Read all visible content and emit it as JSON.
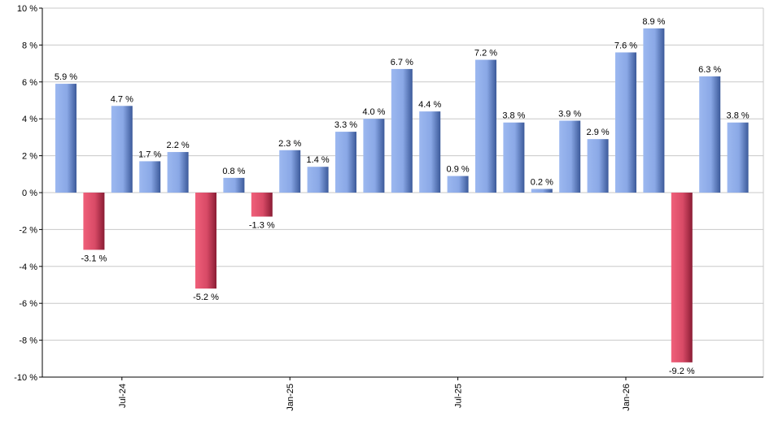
{
  "chart_data": {
    "type": "bar",
    "title": "",
    "xlabel": "",
    "ylabel": "",
    "ylim": [
      -10,
      10
    ],
    "y_ticks": [
      -10,
      -8,
      -6,
      -4,
      -2,
      0,
      2,
      4,
      6,
      8,
      10
    ],
    "y_tick_suffix": " %",
    "grid": true,
    "legend": "none",
    "x_tick_labels": [
      {
        "label": "Jul-24",
        "index": 2
      },
      {
        "label": "Jan-25",
        "index": 8
      },
      {
        "label": "Jul-25",
        "index": 14
      },
      {
        "label": "Jan-26",
        "index": 20
      }
    ],
    "values": [
      5.9,
      -3.1,
      4.7,
      1.7,
      2.2,
      -5.2,
      0.8,
      -1.3,
      2.3,
      1.4,
      3.3,
      4.0,
      6.7,
      4.4,
      0.9,
      7.2,
      3.8,
      0.2,
      3.9,
      2.9,
      7.6,
      8.9,
      -9.2,
      6.3,
      3.8
    ],
    "data_labels": [
      "5.9 %",
      "-3.1 %",
      "4.7 %",
      "1.7 %",
      "2.2 %",
      "-5.2 %",
      "0.8 %",
      "-1.3 %",
      "2.3 %",
      "1.4 %",
      "3.3 %",
      "4.0 %",
      "6.7 %",
      "4.4 %",
      "0.9 %",
      "7.2 %",
      "3.8 %",
      "0.2 %",
      "3.9 %",
      "2.9 %",
      "7.6 %",
      "8.9 %",
      "-9.2 %",
      "6.3 %",
      "3.8 %"
    ],
    "colors": {
      "positive_light": "#9cb8f0",
      "positive_dark": "#3c5a9a",
      "negative_light": "#f0607a",
      "negative_dark": "#8a1c34",
      "grid": "#c8c8c8",
      "axis": "#000000"
    }
  }
}
